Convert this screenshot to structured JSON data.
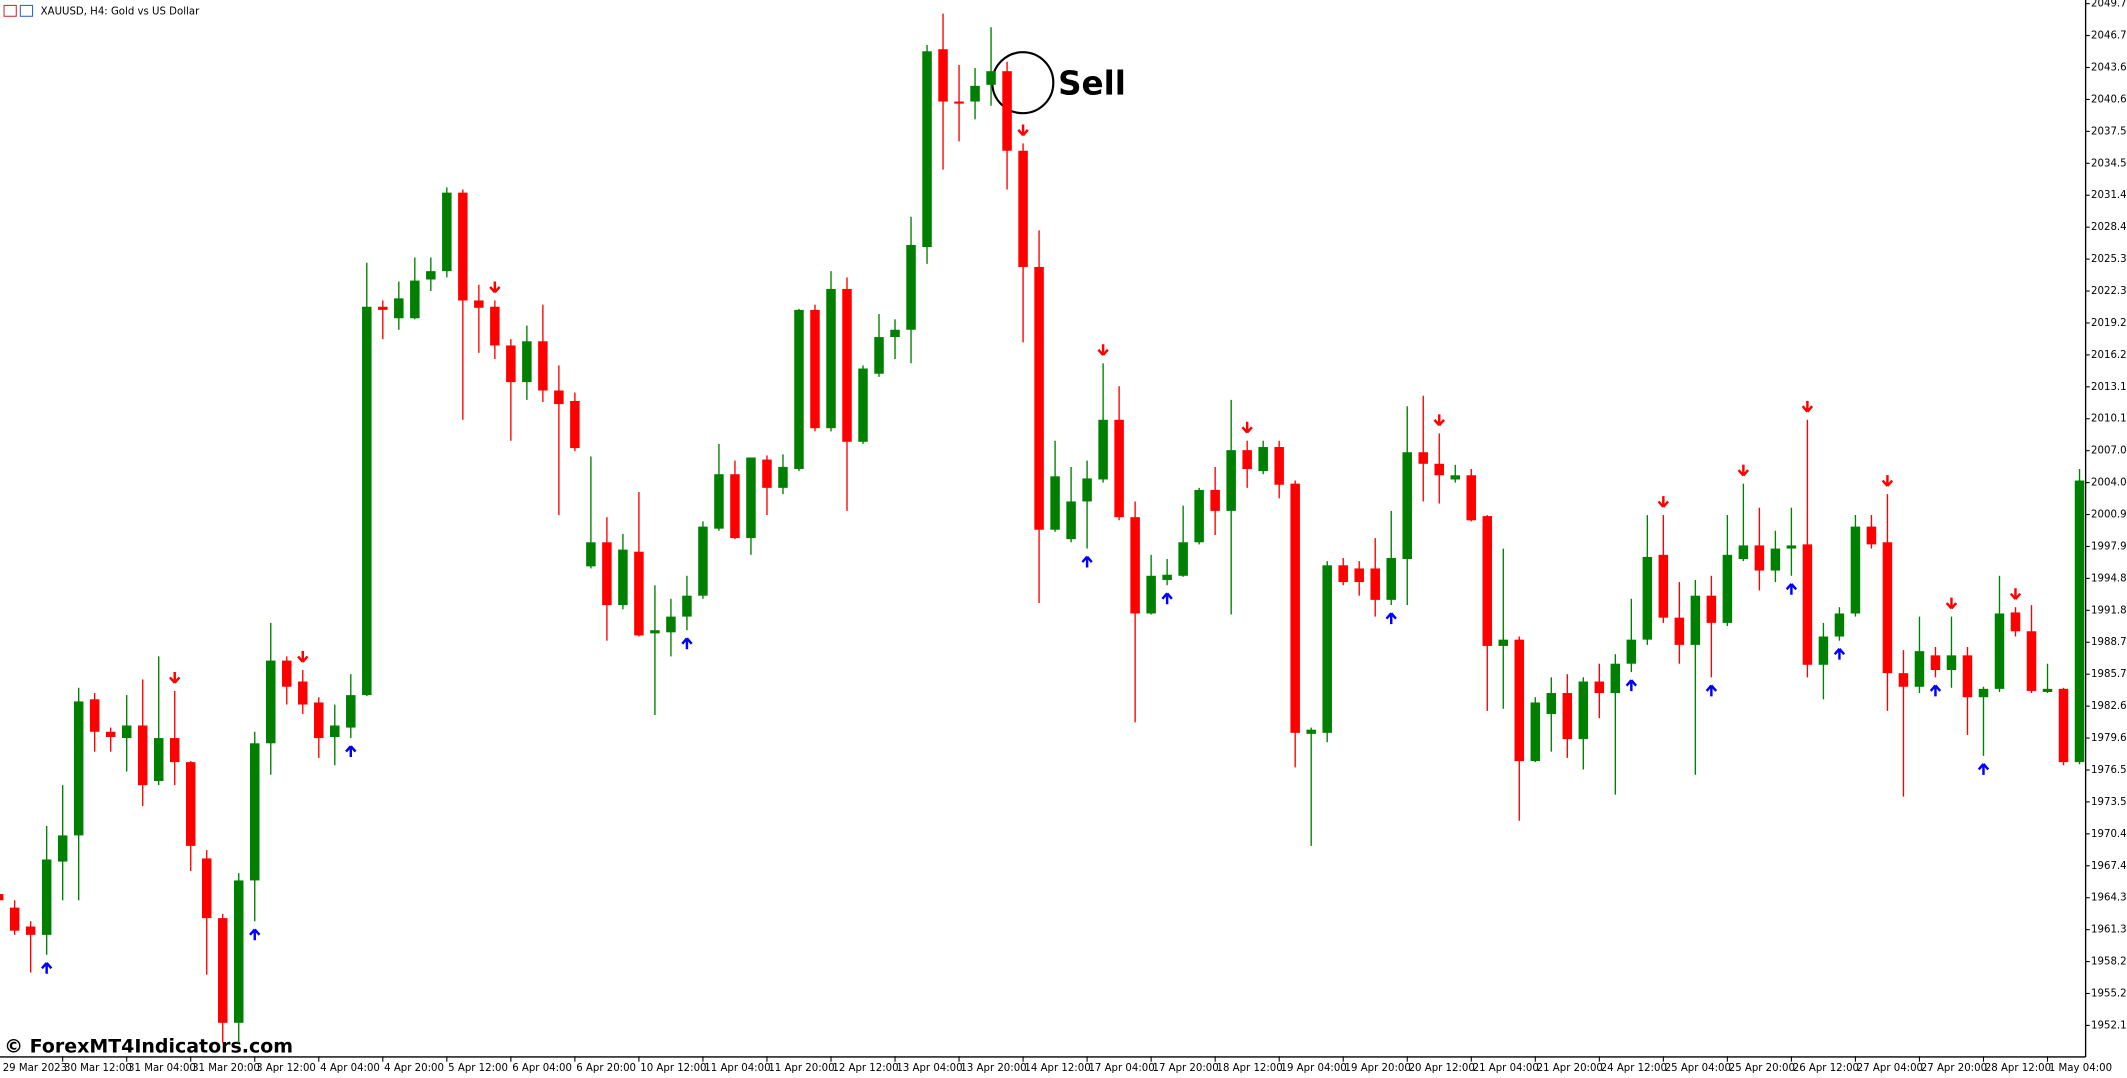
{
  "chart_data": {
    "type": "candlestick",
    "title": "XAUUSD, H4:  Gold vs US Dollar",
    "watermark": "© ForexMT4Indicators.com",
    "annotation": "Sell",
    "up_color": "#008000",
    "down_color": "#ff0000",
    "buy_color": "#0000ff",
    "sell_color": "#ff0000",
    "categories": [
      "29 Mar 2023",
      null,
      null,
      null,
      "30 Mar 12:00",
      null,
      null,
      null,
      "31 Mar 04:00",
      null,
      null,
      null,
      "31 Mar 20:00",
      null,
      null,
      null,
      "3 Apr 12:00",
      null,
      null,
      null,
      "4 Apr 04:00",
      null,
      null,
      null,
      "4 Apr 20:00",
      null,
      null,
      null,
      "5 Apr 12:00",
      null,
      null,
      null,
      "6 Apr 04:00",
      null,
      null,
      null,
      "6 Apr 20:00",
      null,
      null,
      null,
      "10 Apr 12:00",
      null,
      null,
      null,
      "11 Apr 04:00",
      null,
      null,
      null,
      "11 Apr 20:00",
      null,
      null,
      null,
      "12 Apr 12:00",
      null,
      null,
      null,
      "13 Apr 04:00",
      null,
      null,
      null,
      "13 Apr 20:00",
      null,
      null,
      null,
      "14 Apr 12:00",
      null,
      null,
      null,
      "17 Apr 04:00",
      null,
      null,
      null,
      "17 Apr 20:00",
      null,
      null,
      null,
      "18 Apr 12:00",
      null,
      null,
      null,
      "19 Apr 04:00",
      null,
      null,
      null,
      "19 Apr 20:00",
      null,
      null,
      null,
      "20 Apr 12:00",
      null,
      null,
      null,
      "21 Apr 04:00",
      null,
      null,
      null,
      "21 Apr 20:00",
      null,
      null,
      null,
      "24 Apr 12:00",
      null,
      null,
      null,
      "25 Apr 04:00",
      null,
      null,
      null,
      "25 Apr 20:00",
      null,
      null,
      null,
      "26 Apr 12:00",
      null,
      null,
      null,
      "27 Apr 04:00",
      null,
      null,
      null,
      "27 Apr 20:00",
      null,
      null,
      null,
      "28 Apr 12:00",
      null,
      null,
      null,
      "1 May 04:00",
      null,
      null
    ],
    "open": [
      1964.7,
      1963.4,
      1961.6,
      1960.8,
      1967.8,
      1970.3,
      1983.3,
      1980.2,
      1979.6,
      1980.8,
      1975.5,
      1979.6,
      1977.3,
      1968.1,
      1962.4,
      1952.4,
      1966.0,
      1979.1,
      1987.0,
      1985.0,
      1983.0,
      1979.7,
      1980.6,
      1983.7,
      2020.8,
      2019.7,
      2019.7,
      2023.4,
      2024.2,
      2031.7,
      2021.4,
      2020.8,
      2017.1,
      2013.6,
      2017.5,
      2012.8,
      2011.8,
      1996.0,
      1998.3,
      1992.3,
      1997.4,
      1989.6,
      1989.7,
      1991.2,
      1993.2,
      1999.6,
      2004.8,
      1998.7,
      2006.2,
      2003.5,
      2005.3,
      2020.5,
      2009.2,
      2022.5,
      2007.9,
      2014.4,
      2017.9,
      2018.6,
      2026.5,
      2045.4,
      2040.4,
      2040.4,
      2042.0,
      2043.3,
      2035.7,
      2024.6,
      1999.5,
      1998.6,
      2002.2,
      2004.3,
      2010.0,
      2000.7,
      1991.5,
      1994.7,
      1995.1,
      1998.3,
      2003.3,
      2001.3,
      2007.1,
      2005.1,
      2007.4,
      2003.9,
      1980.0,
      1980.1,
      1996.1,
      1995.8,
      1995.8,
      1992.8,
      1996.7,
      2006.9,
      2005.8,
      2004.3,
      2004.7,
      2000.8,
      1988.4,
      1989.0,
      1977.4,
      1981.9,
      1983.9,
      1979.5,
      1985.0,
      1983.9,
      1986.7,
      1989.0,
      1997.1,
      1991.1,
      1988.5,
      1993.2,
      1990.6,
      1996.7,
      1998.0,
      1995.6,
      1997.7,
      1998.1,
      1986.6,
      1989.3,
      1991.5,
      1999.8,
      1998.3,
      1985.8,
      1984.5,
      1987.5,
      1986.1,
      1987.5,
      1983.5,
      1984.3,
      1991.6,
      1989.8,
      1984.0,
      1984.3,
      1977.3
    ],
    "high": [
      1965.0,
      1964.1,
      1962.1,
      1971.2,
      1975.1,
      1984.4,
      1983.9,
      1980.6,
      1983.7,
      1985.2,
      1987.4,
      1984.1,
      1977.4,
      1968.9,
      1962.8,
      1966.7,
      1980.2,
      1990.6,
      1987.4,
      1986.1,
      1983.5,
      1982.8,
      1985.7,
      2025.0,
      2021.4,
      2023.2,
      2025.5,
      2025.5,
      2032.2,
      2032.0,
      2022.9,
      2021.4,
      2017.7,
      2019.0,
      2021.0,
      2015.2,
      2012.6,
      2006.5,
      2000.7,
      1999.1,
      2003.1,
      1994.2,
      1992.9,
      1995.1,
      2000.3,
      2007.7,
      2006.1,
      2006.4,
      2006.6,
      2006.7,
      2020.6,
      2021.0,
      2024.2,
      2023.6,
      2015.2,
      2020.1,
      2019.6,
      2029.4,
      2045.8,
      2048.8,
      2043.9,
      2043.6,
      2047.5,
      2044.2,
      2036.4,
      2028.1,
      2008.0,
      2005.5,
      2006.1,
      2015.4,
      2013.2,
      2002.2,
      1997.1,
      1996.7,
      2001.8,
      2003.5,
      2005.5,
      2011.9,
      2008.0,
      2008.0,
      2008.0,
      2004.2,
      1980.6,
      1996.5,
      1996.8,
      1996.5,
      1998.7,
      2001.3,
      2011.3,
      2012.3,
      2008.7,
      2005.7,
      2005.3,
      2000.9,
      1997.7,
      1989.3,
      1983.5,
      1985.4,
      1985.7,
      1985.4,
      1986.7,
      1987.6,
      1992.9,
      2000.9,
      2000.9,
      1994.5,
      1994.7,
      1995.1,
      2000.9,
      2003.9,
      2001.6,
      1999.4,
      2001.6,
      2010.0,
      1990.6,
      1992.1,
      2000.9,
      2000.9,
      2002.9,
      1988.0,
      1991.2,
      1988.3,
      1991.2,
      1988.3,
      1984.5,
      1995.1,
      1992.1,
      1992.3,
      1986.7,
      1984.4,
      2005.3
    ],
    "low": [
      1963.8,
      1960.8,
      1957.2,
      1958.9,
      1964.1,
      1964.1,
      1978.3,
      1978.3,
      1976.4,
      1973.1,
      1975.1,
      1975.1,
      1966.9,
      1957.0,
      1950.5,
      1950.5,
      1962.1,
      1976.1,
      1982.8,
      1981.9,
      1977.7,
      1977.0,
      1979.6,
      1983.6,
      2017.7,
      2018.6,
      2019.6,
      2022.3,
      2023.6,
      2010.0,
      2016.4,
      2015.8,
      2008.0,
      2011.9,
      2011.7,
      2000.9,
      2007.0,
      1995.8,
      1988.9,
      1991.9,
      1989.3,
      1981.8,
      1987.4,
      1989.9,
      1992.9,
      1999.4,
      1998.6,
      1997.1,
      2000.9,
      2002.9,
      2005.1,
      2008.9,
      2008.9,
      2001.3,
      2007.7,
      2014.1,
      2015.8,
      2015.4,
      2024.9,
      2033.9,
      2036.6,
      2038.7,
      2040.0,
      2032.0,
      2017.4,
      1992.5,
      1999.3,
      1998.3,
      1997.7,
      2004.0,
      2000.4,
      1981.1,
      1991.4,
      1994.2,
      1995.0,
      1998.1,
      1999.0,
      1991.4,
      2003.5,
      2004.8,
      2002.5,
      1976.8,
      1969.3,
      1979.2,
      1994.2,
      1993.2,
      1991.2,
      1992.3,
      1992.3,
      2002.2,
      2002.0,
      2004.0,
      2000.3,
      1982.2,
      1982.4,
      1971.7,
      1977.3,
      1978.3,
      1977.7,
      1976.6,
      1981.5,
      1974.2,
      1985.9,
      1988.5,
      1990.6,
      1986.7,
      1976.1,
      1985.4,
      1990.3,
      1996.5,
      1993.7,
      1994.5,
      1995.1,
      1985.4,
      1983.3,
      1988.9,
      1991.2,
      1997.7,
      1982.2,
      1974.0,
      1983.9,
      1985.4,
      1984.4,
      1979.9,
      1977.9,
      1984.0,
      1989.3,
      1983.9,
      1983.9,
      1977.0,
      1977.1
    ],
    "close": [
      1964.1,
      1961.2,
      1960.8,
      1968.0,
      1970.3,
      1983.1,
      1980.2,
      1979.7,
      1980.8,
      1975.1,
      1979.6,
      1977.3,
      1969.3,
      1962.4,
      1952.4,
      1966.0,
      1979.1,
      1987.0,
      1984.5,
      1982.8,
      1979.6,
      1980.8,
      1983.7,
      2020.8,
      2020.5,
      2021.6,
      2023.3,
      2024.2,
      2031.7,
      2021.4,
      2020.7,
      2017.1,
      2013.6,
      2017.5,
      2012.8,
      2011.5,
      2007.3,
      1998.3,
      1992.3,
      1997.6,
      1989.4,
      1989.9,
      1991.2,
      1993.2,
      1999.8,
      2004.8,
      1998.7,
      2006.4,
      2003.5,
      2005.5,
      2020.5,
      2009.2,
      2022.5,
      2007.9,
      2014.9,
      2017.9,
      2018.6,
      2026.7,
      2045.2,
      2040.4,
      2040.2,
      2041.9,
      2043.3,
      2035.7,
      2024.6,
      1999.5,
      2004.6,
      2002.2,
      2004.4,
      2010.0,
      2000.7,
      1991.5,
      1995.1,
      1995.2,
      1998.3,
      2003.3,
      2001.3,
      2007.1,
      2005.3,
      2007.4,
      2003.8,
      1980.1,
      1980.4,
      1996.1,
      1994.5,
      1994.5,
      1992.8,
      1996.8,
      2006.9,
      2005.8,
      2004.7,
      2004.7,
      2000.4,
      1988.4,
      1989.0,
      1977.4,
      1983.0,
      1983.9,
      1979.5,
      1985.0,
      1983.9,
      1986.7,
      1989.0,
      1996.9,
      1991.1,
      1988.5,
      1993.2,
      1990.6,
      1997.1,
      1998.0,
      1995.6,
      1997.7,
      1998.0,
      1986.6,
      1989.3,
      1991.5,
      1999.8,
      1998.1,
      1985.8,
      1984.5,
      1987.9,
      1986.1,
      1987.5,
      1983.5,
      1984.3,
      1991.5,
      1989.8,
      1984.1,
      1984.3,
      1977.3,
      2004.2
    ],
    "buy_signals": [
      3,
      16,
      22,
      43,
      68,
      73,
      87,
      102,
      107,
      112,
      115,
      121,
      124
    ],
    "sell_signals": [
      11,
      19,
      31,
      64,
      69,
      78,
      90,
      104,
      109,
      113,
      118,
      122,
      126
    ],
    "ylim": [
      1949.2,
      2050.1
    ],
    "yticks": [
      2049.75,
      {
        "value": 2046.7,
        "label": "2046.70"
      },
      2043.65,
      {
        "value": 2040.6,
        "label": "2040.60"
      },
      2037.55,
      {
        "value": 2034.5,
        "label": "2034.50"
      },
      2031.45,
      {
        "value": 2028.4,
        "label": "2028.40"
      },
      2025.35,
      {
        "value": 2022.3,
        "label": "2022.30"
      },
      2019.25,
      {
        "value": 2016.2,
        "label": "2016.20"
      },
      2013.15,
      {
        "value": 2010.1,
        "label": "2010.10"
      },
      2007.05,
      {
        "value": 2004,
        "label": "2004.00"
      },
      2000.95,
      {
        "value": 1997.9,
        "label": "1997.90"
      },
      1994.85,
      {
        "value": 1991.8,
        "label": "1991.80"
      },
      1988.75,
      {
        "value": 1985.7,
        "label": "1985.70"
      },
      1982.65,
      {
        "value": 1979.6,
        "label": "1979.60"
      },
      1976.55,
      {
        "value": 1973.5,
        "label": "1973.50"
      },
      1970.45,
      {
        "value": 1967.4,
        "label": "1967.40"
      },
      1964.35,
      {
        "value": 1961.3,
        "label": "1961.30"
      },
      1958.25,
      {
        "value": 1955.2,
        "label": "1955.20"
      },
      1952.15
    ]
  }
}
